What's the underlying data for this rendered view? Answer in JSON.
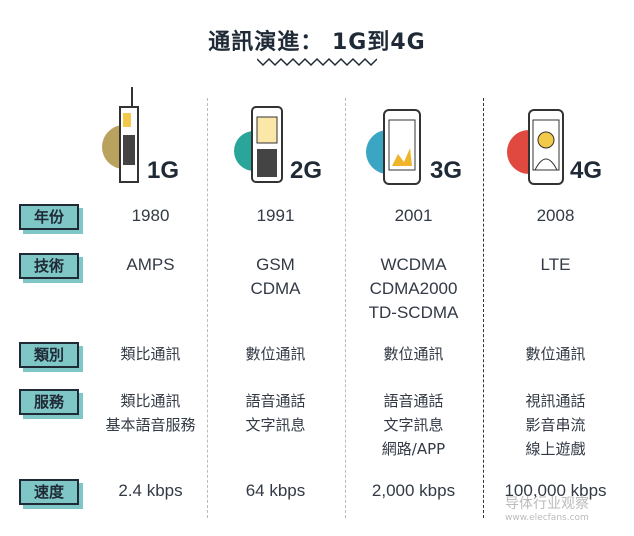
{
  "title": "通訊演進： 1G到4G",
  "generations": [
    {
      "label": "1G",
      "color": "#b9a25e",
      "year": "1980",
      "tech": [
        "AMPS"
      ],
      "type": "類比通訊",
      "services": [
        "類比通訊",
        "基本語音服務"
      ],
      "speed": "2.4 kbps"
    },
    {
      "label": "2G",
      "color": "#2aa59a",
      "year": "1991",
      "tech": [
        "GSM",
        "CDMA"
      ],
      "type": "數位通訊",
      "services": [
        "語音通話",
        "文字訊息"
      ],
      "speed": "64 kbps"
    },
    {
      "label": "3G",
      "color": "#3aa6c4",
      "year": "2001",
      "tech": [
        "WCDMA",
        "CDMA2000",
        "TD-SCDMA"
      ],
      "type": "數位通訊",
      "services": [
        "語音通話",
        "文字訊息",
        "網路/APP"
      ],
      "speed": "2,000 kbps"
    },
    {
      "label": "4G",
      "color": "#e0493f",
      "year": "2008",
      "tech": [
        "LTE"
      ],
      "type": "數位通訊",
      "services": [
        "視訊通話",
        "影音串流",
        "線上遊戲"
      ],
      "speed": "100,000 kbps"
    }
  ],
  "row_labels": {
    "year": "年份",
    "tech": "技術",
    "type": "類別",
    "services": "服務",
    "speed": "速度"
  },
  "accent": "#7fc6c6",
  "watermark": {
    "name": "导体行业观察",
    "url": "www.elecfans.com"
  }
}
